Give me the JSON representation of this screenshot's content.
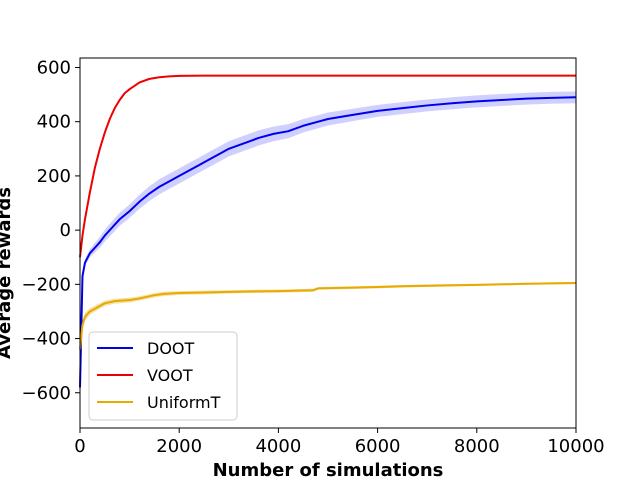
{
  "chart_data": {
    "type": "line",
    "title": "",
    "xlabel": "Number of simulations",
    "ylabel": "Average rewards",
    "xlim": [
      0,
      10000
    ],
    "ylim": [
      -730,
      635
    ],
    "xticks": [
      0,
      2000,
      4000,
      6000,
      8000,
      10000
    ],
    "yticks": [
      -600,
      -400,
      -200,
      0,
      200,
      400,
      600
    ],
    "xtick_labels": [
      "0",
      "2000",
      "4000",
      "6000",
      "8000",
      "10000"
    ],
    "ytick_labels": [
      "−600",
      "−400",
      "−200",
      "0",
      "200",
      "400",
      "600"
    ],
    "grid": false,
    "legend_position": "bottom-left",
    "series": [
      {
        "name": "DOOT",
        "color": "#0000ee",
        "band_color": "#c8c8ff",
        "x": [
          0,
          50,
          100,
          200,
          300,
          400,
          500,
          600,
          700,
          800,
          1000,
          1200,
          1400,
          1600,
          1800,
          2000,
          2200,
          2400,
          2600,
          2800,
          3000,
          3300,
          3600,
          3900,
          4200,
          4500,
          4800,
          5000,
          5500,
          6000,
          6500,
          7000,
          7500,
          8000,
          8500,
          9000,
          9500,
          10000
        ],
        "values": [
          -580,
          -170,
          -120,
          -85,
          -65,
          -45,
          -20,
          0,
          20,
          40,
          70,
          105,
          135,
          160,
          180,
          200,
          220,
          240,
          260,
          280,
          300,
          320,
          340,
          355,
          365,
          385,
          400,
          410,
          425,
          440,
          450,
          460,
          468,
          475,
          480,
          485,
          488,
          490
        ],
        "band_halfwidth": [
          0,
          10,
          12,
          15,
          18,
          20,
          22,
          23,
          24,
          24,
          25,
          26,
          27,
          28,
          28,
          28,
          28,
          28,
          28,
          28,
          28,
          28,
          28,
          27,
          26,
          25,
          24,
          24,
          23,
          22,
          22,
          22,
          22,
          22,
          22,
          22,
          22,
          22
        ]
      },
      {
        "name": "VOOT",
        "color": "#ee0000",
        "x": [
          0,
          50,
          100,
          200,
          300,
          400,
          500,
          600,
          700,
          800,
          900,
          1000,
          1200,
          1400,
          1600,
          1800,
          2000,
          2500,
          3000,
          4000,
          5000,
          7000,
          10000
        ],
        "values": [
          -100,
          -20,
          40,
          140,
          230,
          300,
          360,
          410,
          450,
          480,
          505,
          520,
          545,
          558,
          564,
          567,
          569,
          570,
          570,
          570,
          570,
          570,
          570
        ]
      },
      {
        "name": "UniformT",
        "color": "#e6aa00",
        "band_color": "#f5dc96",
        "x": [
          0,
          50,
          100,
          200,
          300,
          400,
          500,
          700,
          1000,
          1200,
          1500,
          1700,
          2000,
          2500,
          3000,
          3500,
          4000,
          4700,
          4800,
          5500,
          6000,
          6500,
          7000,
          8000,
          9000,
          10000
        ],
        "values": [
          -440,
          -350,
          -320,
          -300,
          -290,
          -280,
          -270,
          -262,
          -258,
          -252,
          -240,
          -235,
          -232,
          -230,
          -228,
          -226,
          -225,
          -222,
          -215,
          -212,
          -210,
          -207,
          -205,
          -202,
          -198,
          -195
        ],
        "band_halfwidth": [
          0,
          15,
          14,
          12,
          11,
          10,
          10,
          9,
          9,
          8,
          8,
          8,
          7,
          7,
          6,
          6,
          6,
          6,
          5,
          5,
          5,
          5,
          5,
          4,
          4,
          4
        ]
      }
    ]
  }
}
